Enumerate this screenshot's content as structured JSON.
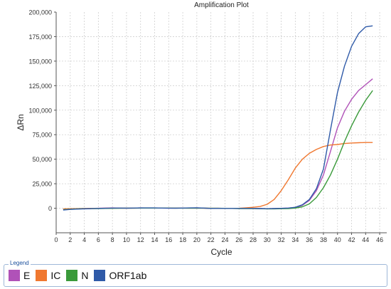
{
  "chart_data": {
    "type": "line",
    "title": "Amplification Plot",
    "xlabel": "Cycle",
    "ylabel": "ΔRn",
    "xlim": [
      0,
      47
    ],
    "ylim": [
      -25000,
      200000
    ],
    "xticks": [
      0,
      2,
      4,
      6,
      8,
      10,
      12,
      14,
      16,
      18,
      20,
      22,
      24,
      26,
      28,
      30,
      32,
      34,
      36,
      38,
      40,
      42,
      44,
      46
    ],
    "yticks": [
      0,
      25000,
      50000,
      75000,
      100000,
      125000,
      150000,
      175000,
      200000
    ],
    "ytick_labels": [
      "0",
      "25,000",
      "50,000",
      "75,000",
      "100,000",
      "125,000",
      "150,000",
      "175,000",
      "200,000"
    ],
    "grid": true,
    "legend_position": "bottom",
    "x": [
      1,
      2,
      3,
      4,
      5,
      6,
      7,
      8,
      9,
      10,
      11,
      12,
      13,
      14,
      15,
      16,
      17,
      18,
      19,
      20,
      21,
      22,
      23,
      24,
      25,
      26,
      27,
      28,
      29,
      30,
      31,
      32,
      33,
      34,
      35,
      36,
      37,
      38,
      39,
      40,
      41,
      42,
      43,
      44,
      45
    ],
    "series": [
      {
        "name": "E",
        "color": "#b052b8",
        "values": [
          -1200,
          -800,
          -500,
          -300,
          -200,
          0,
          200,
          300,
          200,
          100,
          200,
          300,
          200,
          200,
          200,
          100,
          100,
          200,
          200,
          300,
          100,
          -200,
          -100,
          -200,
          -200,
          -200,
          -200,
          -200,
          -300,
          -500,
          -300,
          -100,
          200,
          800,
          3000,
          8000,
          18000,
          34000,
          58000,
          82000,
          99000,
          111000,
          120000,
          126000,
          132000
        ]
      },
      {
        "name": "IC",
        "color": "#f07830",
        "values": [
          -600,
          -500,
          -400,
          -300,
          -200,
          -100,
          0,
          100,
          100,
          100,
          100,
          200,
          200,
          200,
          200,
          200,
          200,
          200,
          100,
          100,
          100,
          0,
          0,
          -200,
          -200,
          0,
          400,
          1000,
          1800,
          4000,
          9000,
          18000,
          29000,
          41000,
          50000,
          56000,
          60000,
          63000,
          64500,
          65000,
          66000,
          66500,
          66800,
          67000,
          67000
        ]
      },
      {
        "name": "N",
        "color": "#3a9a3a",
        "values": [
          -1500,
          -1000,
          -700,
          -500,
          -400,
          -300,
          -200,
          -100,
          0,
          100,
          100,
          200,
          200,
          200,
          200,
          200,
          100,
          100,
          100,
          100,
          100,
          0,
          0,
          -100,
          -200,
          -300,
          -300,
          -400,
          -500,
          -600,
          -600,
          -500,
          -300,
          200,
          1500,
          4500,
          11000,
          21000,
          34000,
          50000,
          68000,
          84000,
          98000,
          110000,
          120000
        ]
      },
      {
        "name": "ORF1ab",
        "color": "#2f5aa8",
        "values": [
          -1800,
          -1200,
          -800,
          -600,
          -400,
          -200,
          0,
          200,
          200,
          100,
          200,
          300,
          300,
          300,
          200,
          100,
          100,
          200,
          300,
          400,
          200,
          -200,
          -100,
          -200,
          -200,
          -200,
          -200,
          -200,
          -300,
          -500,
          -300,
          -100,
          200,
          1000,
          3500,
          9000,
          20000,
          40000,
          80000,
          118000,
          145000,
          165000,
          178000,
          185000,
          186000
        ]
      }
    ]
  },
  "legend": {
    "title": "Legend",
    "items": [
      {
        "label": "E",
        "color": "#b052b8"
      },
      {
        "label": "IC",
        "color": "#f07830"
      },
      {
        "label": "N",
        "color": "#3a9a3a"
      },
      {
        "label": "ORF1ab",
        "color": "#2f5aa8"
      }
    ]
  }
}
